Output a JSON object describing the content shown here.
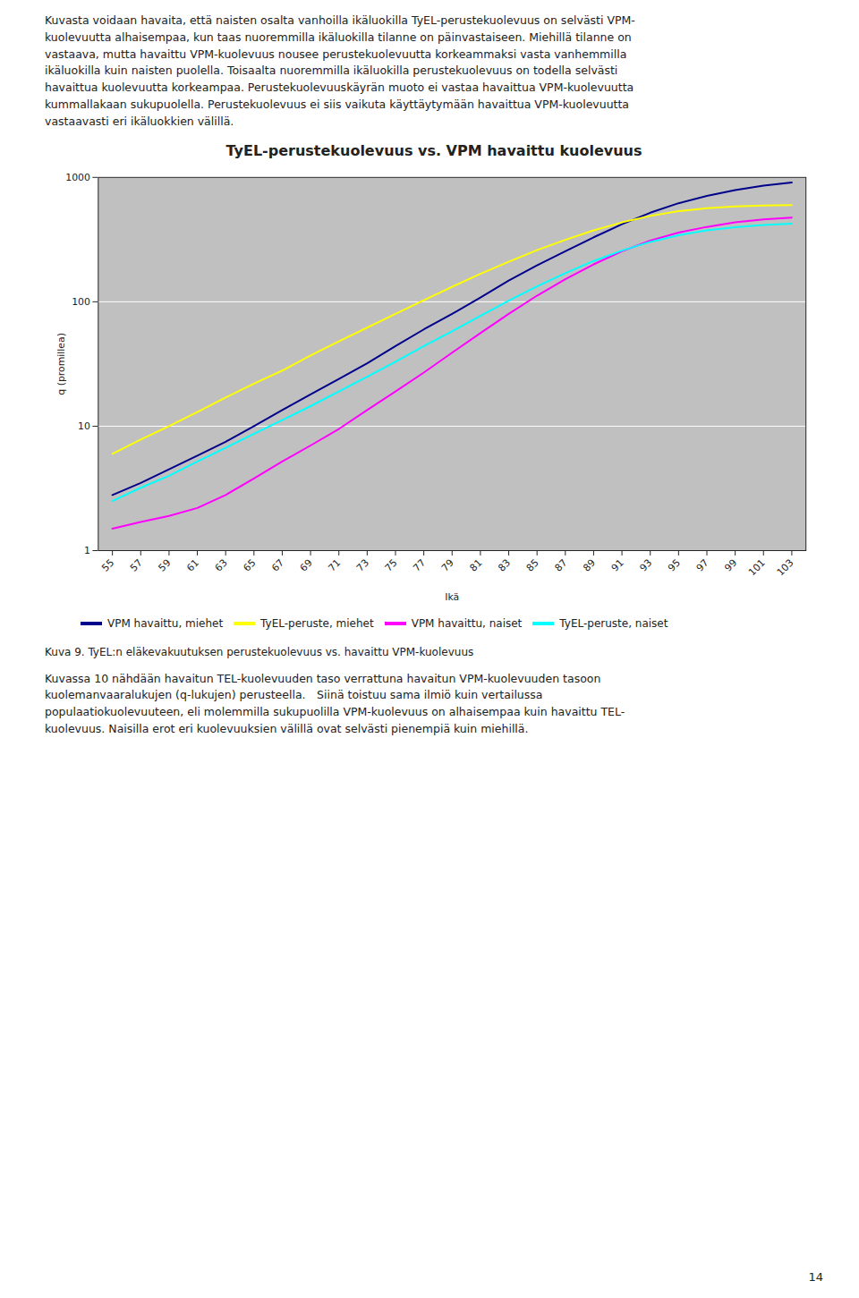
{
  "chart_data": {
    "type": "line",
    "title": "TyEL-perustekuolevuus vs. VPM havaittu kuolevuus",
    "x_label": "Ikä",
    "y_label": "q (promillea)",
    "x": [
      55,
      57,
      59,
      61,
      63,
      65,
      67,
      69,
      71,
      73,
      75,
      77,
      79,
      81,
      83,
      85,
      87,
      89,
      91,
      93,
      95,
      97,
      99,
      101,
      103
    ],
    "series": [
      {
        "name": "VPM havaittu, miehet",
        "color": "#00008B",
        "values": [
          2.8,
          3.5,
          4.5,
          5.8,
          7.5,
          10.0,
          13.5,
          18.0,
          24.0,
          32.0,
          44.0,
          60.0,
          80.0,
          108.0,
          148.0,
          196.0,
          255.0,
          330.0,
          420.0,
          520.0,
          620.0,
          710.0,
          790.0,
          860.0,
          910.0
        ]
      },
      {
        "name": "TyEL-peruste, miehet",
        "color": "#FFFF00",
        "values": [
          6.0,
          7.8,
          10.0,
          13.0,
          17.0,
          22.0,
          28.0,
          37.0,
          48.0,
          62.0,
          80.0,
          103.0,
          132.0,
          168.0,
          210.0,
          260.0,
          315.0,
          375.0,
          435.0,
          490.0,
          535.0,
          565.0,
          585.0,
          595.0,
          600.0
        ]
      },
      {
        "name": "VPM havaittu, naiset",
        "color": "#FF00FF",
        "values": [
          1.5,
          1.7,
          1.9,
          2.2,
          2.8,
          3.8,
          5.2,
          7.0,
          9.5,
          13.5,
          19.0,
          27.0,
          39.0,
          56.0,
          80.0,
          112.0,
          152.0,
          200.0,
          255.0,
          310.0,
          360.0,
          400.0,
          435.0,
          460.0,
          475.0
        ]
      },
      {
        "name": "TyEL-peruste, naiset",
        "color": "#00FFFF",
        "values": [
          2.5,
          3.2,
          4.0,
          5.2,
          6.7,
          8.7,
          11.2,
          14.5,
          19.0,
          25.0,
          33.0,
          44.0,
          58.0,
          77.0,
          102.0,
          133.0,
          170.0,
          213.0,
          258.0,
          303.0,
          343.0,
          375.0,
          398.0,
          415.0,
          425.0
        ]
      }
    ],
    "xlim": [
      54,
      104
    ],
    "xticks": [
      55,
      57,
      59,
      61,
      63,
      65,
      67,
      69,
      71,
      73,
      75,
      77,
      79,
      81,
      83,
      85,
      87,
      89,
      91,
      93,
      95,
      97,
      99,
      101,
      103
    ],
    "ylim": [
      1,
      1000
    ],
    "yticks": [
      1,
      10,
      100,
      1000
    ],
    "log": "y",
    "grid": true,
    "legend": "bottom",
    "caption": "Kuva 9. TyEL:n eläkevakuutuksen perustekuolevuus vs. havaittu VPM-kuolevuus",
    "annotations": [
      "Kuvasta voidaan havaita, että naisten osalta vanhoilla ikäluokilla TyEL-perustekuolevuus on selvästi VPM-\nkuolevuutta alhaisempaa, kun taas nuoremmilla ikäluokilla tilanne on päinvastaiseen. Miehillä tilanne on\nvastaava, mutta havaittu VPM-kuolevuus nousee perustekuolevuutta korkeammaksi vasta vanhemmilla\nikäluokilla kuin naisten puolella. Toisaalta nuoremmilla ikäluokilla perustekuolevuus on todella selvästi\nhavaittua kuolevuutta korkeampaa. Perustekuolevuuskäyrän muoto ei vastaa havaittua VPM-kuolevuutta\nkummallakaan sukupuolella. Perustekuolevuus ei siis vaikuta käyttäytymään havaittua VPM-kuolevuutta\nvastaavasti eri ikäluokkien välillä.",
      "Kuvassa 10 nähdään havaitun TEL-kuolevuuden taso verrattuna havaitun VPM-kuolevuuden tasoon\nkuolemanvaaralukujen (q-lukujen) perusteella. Siinä toistuu sama ilmiö kuin vertailussa\npopulaatiokuolevuuteen, eli molemmilla sukupuolilla VPM-kuolevuus on alhaisempaa kuin havaittu TEL-\nkuolevuus. Naisilla erot eri kuolevuuksien välillä ovat selvästi pienempiä kuin miehillä.",
      "14"
    ]
  }
}
